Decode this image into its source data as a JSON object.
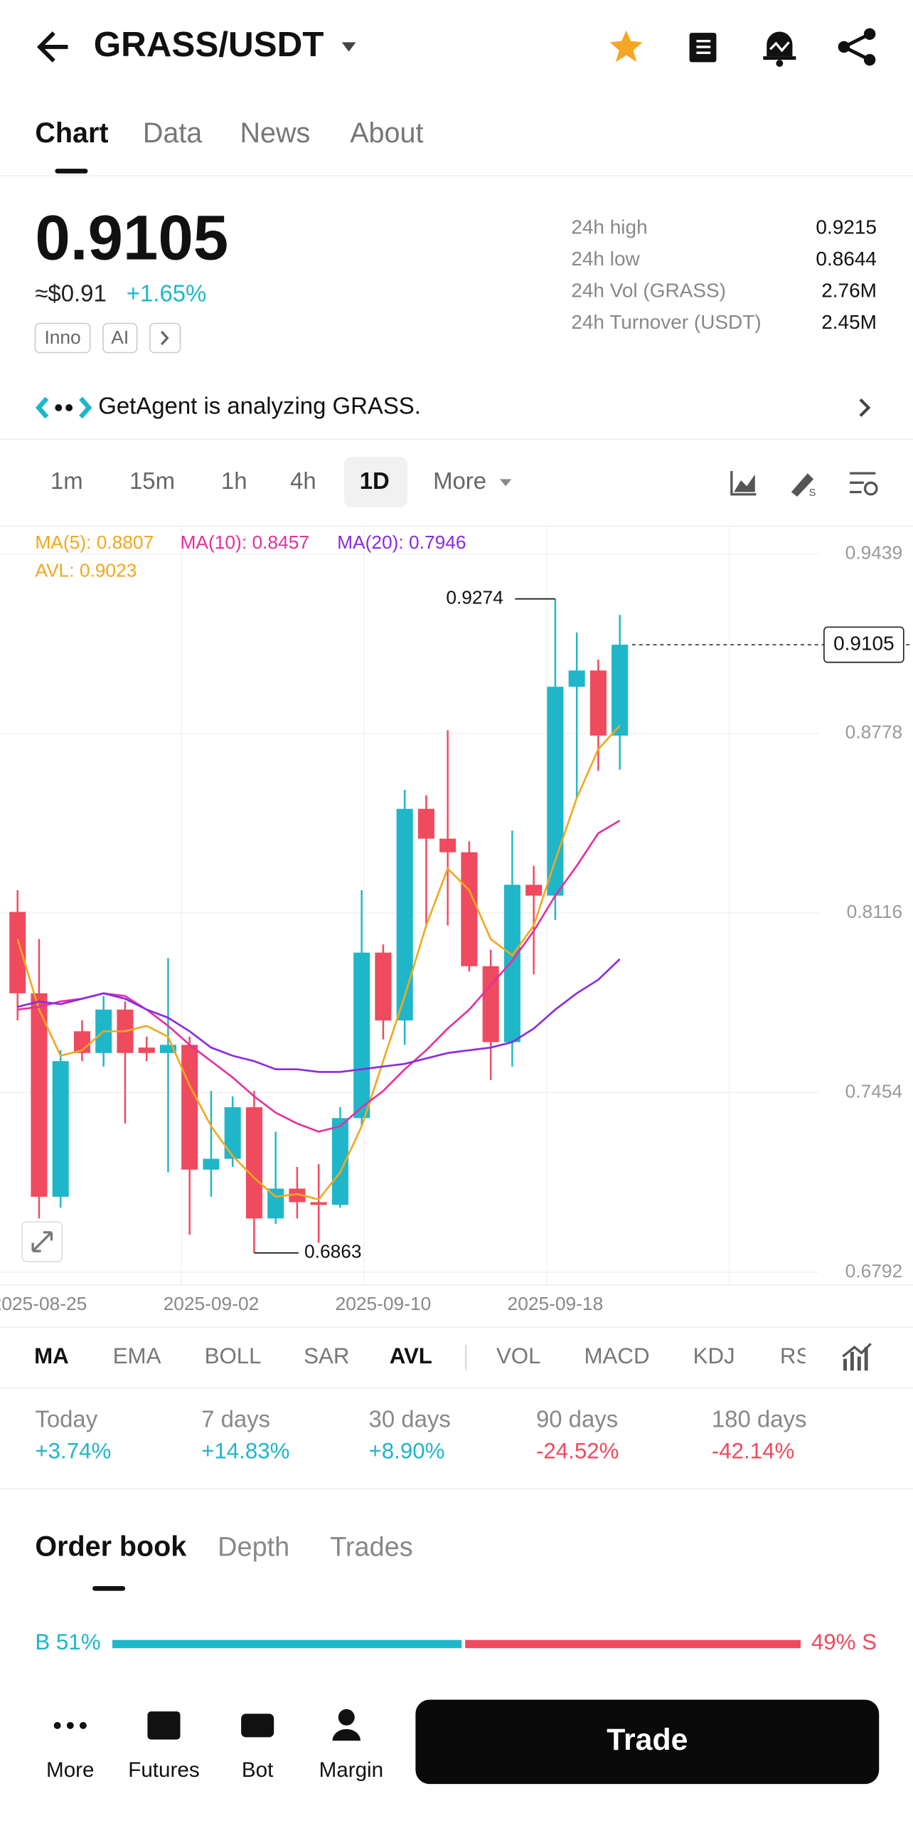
{
  "header": {
    "title": "GRASS/USDT"
  },
  "tabs": [
    "Chart",
    "Data",
    "News",
    "About"
  ],
  "price": {
    "last": "0.9105",
    "usd": "≈$0.91",
    "change": "+1.65%",
    "tags": [
      "Inno",
      "AI"
    ]
  },
  "stats": [
    {
      "label": "24h high",
      "value": "0.9215"
    },
    {
      "label": "24h low",
      "value": "0.8644"
    },
    {
      "label": "24h Vol (GRASS)",
      "value": "2.76M"
    },
    {
      "label": "24h Turnover (USDT)",
      "value": "2.45M"
    }
  ],
  "agent": "GetAgent is analyzing GRASS.",
  "intervals": [
    "1m",
    "15m",
    "1h",
    "4h",
    "1D"
  ],
  "more": "More",
  "chart_data": {
    "type": "candlestick",
    "x": [
      "2025-08-24",
      "2025-08-25",
      "2025-08-26",
      "2025-08-27",
      "2025-08-28",
      "2025-08-29",
      "2025-08-30",
      "2025-08-31",
      "2025-09-01",
      "2025-09-02",
      "2025-09-03",
      "2025-09-04",
      "2025-09-05",
      "2025-09-06",
      "2025-09-07",
      "2025-09-08",
      "2025-09-09",
      "2025-09-10",
      "2025-09-11",
      "2025-09-12",
      "2025-09-13",
      "2025-09-14",
      "2025-09-15",
      "2025-09-16",
      "2025-09-17",
      "2025-09-18",
      "2025-09-19",
      "2025-09-20",
      "2025-09-21"
    ],
    "open": [
      0.812,
      0.782,
      0.707,
      0.768,
      0.76,
      0.776,
      0.762,
      0.76,
      0.763,
      0.717,
      0.721,
      0.74,
      0.699,
      0.71,
      0.705,
      0.704,
      0.736,
      0.797,
      0.772,
      0.85,
      0.839,
      0.834,
      0.792,
      0.764,
      0.822,
      0.818,
      0.895,
      0.901,
      0.877
    ],
    "high": [
      0.82,
      0.802,
      0.761,
      0.772,
      0.781,
      0.779,
      0.766,
      0.795,
      0.766,
      0.746,
      0.744,
      0.746,
      0.731,
      0.718,
      0.719,
      0.74,
      0.82,
      0.8,
      0.857,
      0.855,
      0.879,
      0.838,
      0.798,
      0.842,
      0.829,
      0.9274,
      0.915,
      0.905,
      0.9215
    ],
    "low": [
      0.772,
      0.699,
      0.703,
      0.757,
      0.755,
      0.734,
      0.757,
      0.716,
      0.693,
      0.707,
      0.718,
      0.6863,
      0.697,
      0.699,
      0.69,
      0.703,
      0.733,
      0.765,
      0.763,
      0.807,
      0.807,
      0.79,
      0.75,
      0.755,
      0.789,
      0.809,
      0.854,
      0.864,
      0.8644
    ],
    "close": [
      0.782,
      0.707,
      0.757,
      0.76,
      0.776,
      0.76,
      0.76,
      0.763,
      0.717,
      0.721,
      0.74,
      0.699,
      0.71,
      0.705,
      0.704,
      0.736,
      0.797,
      0.772,
      0.85,
      0.839,
      0.834,
      0.792,
      0.764,
      0.822,
      0.818,
      0.895,
      0.901,
      0.877,
      0.9105
    ],
    "up_color": "#1fb6c9",
    "down_color": "#f04a5e",
    "ylim": [
      0.6792,
      0.9439
    ],
    "yticks": [
      0.9439,
      0.8778,
      0.8116,
      0.7454,
      0.6792
    ],
    "grid": true,
    "xticks": [
      "2025-08-25",
      "2025-09-02",
      "2025-09-10",
      "2025-09-18"
    ],
    "lines": [
      {
        "name": "MA(5)",
        "color": "#f2a81d",
        "legend_value": 0.8807,
        "values": [
          0.802,
          0.776,
          0.759,
          0.761,
          0.768,
          0.768,
          0.77,
          0.766,
          0.748,
          0.733,
          0.722,
          0.714,
          0.707,
          0.708,
          0.706,
          0.716,
          0.733,
          0.757,
          0.781,
          0.807,
          0.828,
          0.82,
          0.802,
          0.796,
          0.807,
          0.831,
          0.854,
          0.872,
          0.8807
        ]
      },
      {
        "name": "MA(10)",
        "color": "#e5309c",
        "legend_value": 0.8457,
        "values": [
          0.776,
          0.777,
          0.779,
          0.78,
          0.782,
          0.781,
          0.776,
          0.77,
          0.763,
          0.757,
          0.751,
          0.744,
          0.738,
          0.734,
          0.731,
          0.733,
          0.74,
          0.746,
          0.754,
          0.761,
          0.769,
          0.776,
          0.785,
          0.794,
          0.805,
          0.818,
          0.829,
          0.841,
          0.8457
        ]
      },
      {
        "name": "MA(20)",
        "color": "#8a2be2",
        "legend_value": 0.7946,
        "values": [
          0.777,
          0.779,
          0.778,
          0.78,
          0.782,
          0.78,
          0.776,
          0.773,
          0.768,
          0.762,
          0.759,
          0.757,
          0.754,
          0.754,
          0.753,
          0.753,
          0.754,
          0.755,
          0.756,
          0.758,
          0.76,
          0.761,
          0.762,
          0.764,
          0.769,
          0.776,
          0.782,
          0.787,
          0.7946
        ]
      }
    ],
    "avl": {
      "name": "AVL",
      "color": "#f2a81d",
      "legend_value": 0.9023
    }
  },
  "indicators": [
    "MA",
    "EMA",
    "BOLL",
    "SAR",
    "AVL",
    "VOL",
    "MACD",
    "KDJ",
    "RSI"
  ],
  "performance": [
    {
      "period": "Today",
      "value": "+3.74%",
      "color": "#1fb6c9"
    },
    {
      "period": "7 days",
      "value": "+14.83%",
      "color": "#1fb6c9"
    },
    {
      "period": "30 days",
      "value": "+8.90%",
      "color": "#1fb6c9"
    },
    {
      "period": "90 days",
      "value": "-24.52%",
      "color": "#f04a5e"
    },
    {
      "period": "180 days",
      "value": "-42.14%",
      "color": "#f04a5e"
    }
  ],
  "orderbook": {
    "tabs": [
      "Order book",
      "Depth",
      "Trades"
    ],
    "buy": {
      "label": "B 51%",
      "value": 51,
      "color": "#1fb6c9"
    },
    "sell": {
      "label": "49% S",
      "value": 49,
      "color": "#f04a5e"
    }
  },
  "nav": [
    "More",
    "Futures",
    "Bot",
    "Margin"
  ],
  "trade": "Trade"
}
